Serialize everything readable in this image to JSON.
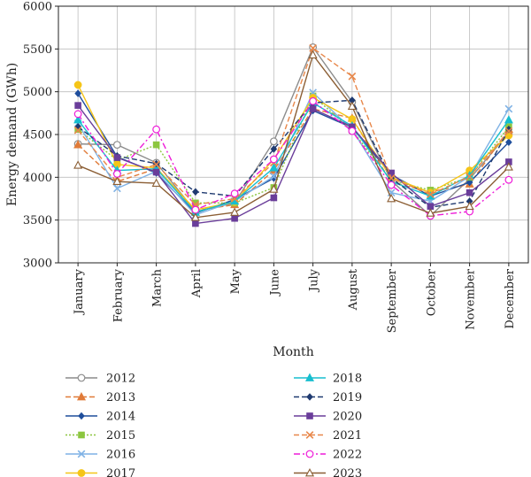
{
  "chart_data": {
    "type": "line",
    "xlabel": "Month",
    "ylabel": "Energy demand (GWh)",
    "ylim": [
      3000,
      6000
    ],
    "yticks": [
      3000,
      3500,
      4000,
      4500,
      5000,
      5500,
      6000
    ],
    "grid": true,
    "legend_position": "bottom",
    "categories": [
      "January",
      "February",
      "March",
      "April",
      "May",
      "June",
      "July",
      "August",
      "September",
      "October",
      "November",
      "December"
    ],
    "series": [
      {
        "name": "2012",
        "color": "#8c8c8c",
        "marker": "circle-open",
        "dash": "solid",
        "values": [
          4390,
          4380,
          4170,
          3600,
          3700,
          4420,
          5520,
          4880,
          3960,
          3550,
          3980,
          4520
        ]
      },
      {
        "name": "2013",
        "color": "#e07b39",
        "marker": "triangle",
        "dash": "dash",
        "values": [
          4380,
          3950,
          4100,
          3610,
          3680,
          4080,
          4800,
          4690,
          3940,
          3830,
          3920,
          4560
        ]
      },
      {
        "name": "2014",
        "color": "#1f4e9c",
        "marker": "diamond",
        "dash": "solid",
        "values": [
          4980,
          4240,
          4050,
          3580,
          3740,
          3990,
          4780,
          4580,
          4030,
          3780,
          3940,
          4410
        ]
      },
      {
        "name": "2015",
        "color": "#8cc63f",
        "marker": "square",
        "dash": "dot",
        "values": [
          4560,
          4200,
          4380,
          3700,
          3700,
          3880,
          4950,
          4550,
          3960,
          3850,
          4000,
          4590
        ]
      },
      {
        "name": "2016",
        "color": "#7fb2e5",
        "marker": "x",
        "dash": "solid",
        "values": [
          4630,
          3870,
          4070,
          3560,
          3720,
          4010,
          4990,
          4560,
          3820,
          3720,
          4010,
          4800
        ]
      },
      {
        "name": "2017",
        "color": "#f5c518",
        "marker": "circle",
        "dash": "solid",
        "values": [
          5080,
          4150,
          4110,
          3620,
          3710,
          4210,
          4930,
          4680,
          4000,
          3820,
          4080,
          4490
        ]
      },
      {
        "name": "2018",
        "color": "#17becf",
        "marker": "triangle",
        "dash": "solid",
        "values": [
          4670,
          4080,
          4100,
          3590,
          3720,
          4110,
          4870,
          4600,
          3950,
          3780,
          4020,
          4670
        ]
      },
      {
        "name": "2019",
        "color": "#1f3a70",
        "marker": "diamond",
        "dash": "dash",
        "values": [
          4590,
          4250,
          4160,
          3830,
          3780,
          4330,
          4870,
          4900,
          3990,
          3650,
          3720,
          4560
        ]
      },
      {
        "name": "2020",
        "color": "#6a3d9a",
        "marker": "square",
        "dash": "solid",
        "values": [
          4840,
          4230,
          4060,
          3460,
          3520,
          3760,
          4800,
          4590,
          4050,
          3660,
          3820,
          4180
        ]
      },
      {
        "name": "2021",
        "color": "#e8874a",
        "marker": "x",
        "dash": "dash",
        "values": [
          4550,
          4000,
          4150,
          3680,
          3750,
          4170,
          5510,
          5180,
          3990,
          3800,
          4010,
          4540
        ]
      },
      {
        "name": "2022",
        "color": "#ee1bd8",
        "marker": "circle-open",
        "dash": "dashdot",
        "values": [
          4740,
          4040,
          4560,
          3620,
          3810,
          4210,
          4890,
          4540,
          3910,
          3550,
          3600,
          3970
        ]
      },
      {
        "name": "2023",
        "color": "#8b5e34",
        "marker": "triangle-open",
        "dash": "solid",
        "values": [
          4140,
          3950,
          3930,
          3530,
          3590,
          3860,
          5430,
          4830,
          3750,
          3580,
          3660,
          4120
        ]
      }
    ]
  }
}
